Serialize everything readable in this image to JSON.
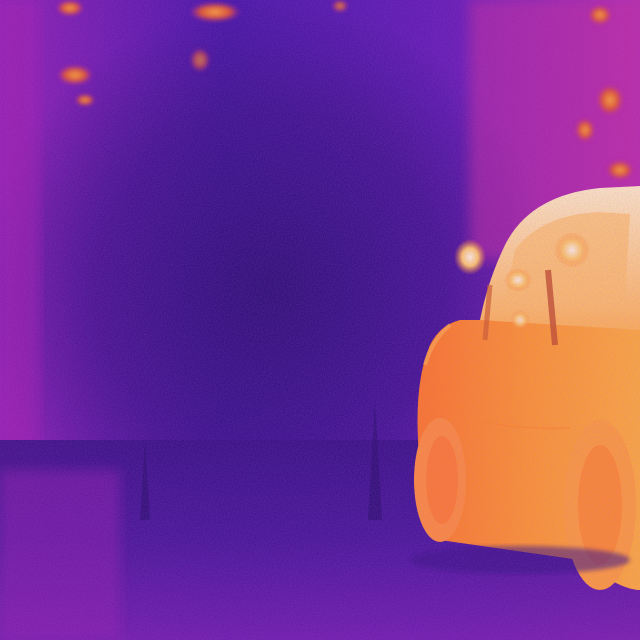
{
  "image": {
    "kind": "thermal-camera-frame",
    "palette": "ironbow",
    "palette_colors": {
      "cold": "#1e0a6a",
      "cool": "#5a12a8",
      "mid": "#b0209a",
      "warm": "#ff6a1a",
      "hot": "#ffb030",
      "hottest": "#fff4c0"
    },
    "subjects": [
      "trees",
      "ground",
      "car"
    ]
  }
}
